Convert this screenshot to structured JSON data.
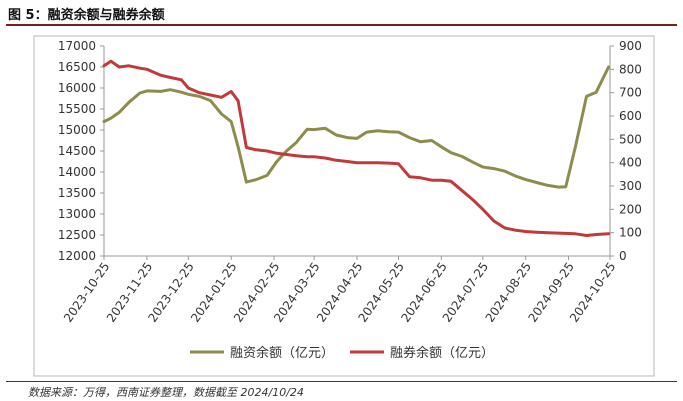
{
  "figure_title": "图 5：融资余额与融券余额",
  "source_note": "数据来源：万得，西南证券整理，数据截至 2024/10/24",
  "chart_data": {
    "type": "line",
    "title": "",
    "x_tick_labels": [
      "2023-10-25",
      "2023-11-25",
      "2023-12-25",
      "2024-01-25",
      "2024-02-25",
      "2024-03-25",
      "2024-04-25",
      "2024-05-25",
      "2024-06-25",
      "2024-07-25",
      "2024-08-25",
      "2024-09-25",
      "2024-10-25"
    ],
    "left_axis": {
      "min": 12000,
      "max": 17000,
      "ticks": [
        12000,
        12500,
        13000,
        13500,
        14000,
        14500,
        15000,
        15500,
        16000,
        16500,
        17000
      ]
    },
    "right_axis": {
      "min": 0,
      "max": 900,
      "ticks": [
        0,
        100,
        200,
        300,
        400,
        500,
        600,
        700,
        800,
        900
      ]
    },
    "grid": false,
    "legend_position": "bottom",
    "series": [
      {
        "name": "融资余额（亿元）",
        "axis": "left",
        "color": "#8c8c4e",
        "points": [
          [
            "2023-10-25",
            15200
          ],
          [
            "2023-10-30",
            15280
          ],
          [
            "2023-11-05",
            15420
          ],
          [
            "2023-11-12",
            15660
          ],
          [
            "2023-11-20",
            15880
          ],
          [
            "2023-11-25",
            15930
          ],
          [
            "2023-12-05",
            15920
          ],
          [
            "2023-12-12",
            15960
          ],
          [
            "2023-12-20",
            15900
          ],
          [
            "2023-12-25",
            15850
          ],
          [
            "2024-01-02",
            15800
          ],
          [
            "2024-01-10",
            15700
          ],
          [
            "2024-01-18",
            15380
          ],
          [
            "2024-01-25",
            15200
          ],
          [
            "2024-01-30",
            14600
          ],
          [
            "2024-02-05",
            13760
          ],
          [
            "2024-02-12",
            13820
          ],
          [
            "2024-02-20",
            13920
          ],
          [
            "2024-02-27",
            14250
          ],
          [
            "2024-03-05",
            14500
          ],
          [
            "2024-03-12",
            14700
          ],
          [
            "2024-03-20",
            15020
          ],
          [
            "2024-03-25",
            15010
          ],
          [
            "2024-04-02",
            15040
          ],
          [
            "2024-04-10",
            14880
          ],
          [
            "2024-04-18",
            14820
          ],
          [
            "2024-04-25",
            14800
          ],
          [
            "2024-05-02",
            14950
          ],
          [
            "2024-05-10",
            14980
          ],
          [
            "2024-05-18",
            14960
          ],
          [
            "2024-05-25",
            14950
          ],
          [
            "2024-06-02",
            14820
          ],
          [
            "2024-06-10",
            14720
          ],
          [
            "2024-06-18",
            14750
          ],
          [
            "2024-06-25",
            14600
          ],
          [
            "2024-07-02",
            14460
          ],
          [
            "2024-07-10",
            14370
          ],
          [
            "2024-07-18",
            14230
          ],
          [
            "2024-07-25",
            14120
          ],
          [
            "2024-08-02",
            14080
          ],
          [
            "2024-08-10",
            14020
          ],
          [
            "2024-08-18",
            13900
          ],
          [
            "2024-08-25",
            13820
          ],
          [
            "2024-09-02",
            13750
          ],
          [
            "2024-09-10",
            13680
          ],
          [
            "2024-09-18",
            13640
          ],
          [
            "2024-09-23",
            13650
          ],
          [
            "2024-09-30",
            14600
          ],
          [
            "2024-10-08",
            15800
          ],
          [
            "2024-10-15",
            15900
          ],
          [
            "2024-10-24",
            16500
          ]
        ]
      },
      {
        "name": "融券余额（亿元）",
        "axis": "right",
        "color": "#c0393b",
        "points": [
          [
            "2023-10-25",
            815
          ],
          [
            "2023-10-30",
            835
          ],
          [
            "2023-11-05",
            810
          ],
          [
            "2023-11-12",
            815
          ],
          [
            "2023-11-20",
            805
          ],
          [
            "2023-11-25",
            800
          ],
          [
            "2023-12-05",
            775
          ],
          [
            "2023-12-12",
            765
          ],
          [
            "2023-12-20",
            755
          ],
          [
            "2023-12-25",
            720
          ],
          [
            "2024-01-02",
            700
          ],
          [
            "2024-01-10",
            690
          ],
          [
            "2024-01-18",
            680
          ],
          [
            "2024-01-25",
            705
          ],
          [
            "2024-01-30",
            665
          ],
          [
            "2024-02-05",
            465
          ],
          [
            "2024-02-12",
            455
          ],
          [
            "2024-02-20",
            450
          ],
          [
            "2024-02-27",
            440
          ],
          [
            "2024-03-05",
            435
          ],
          [
            "2024-03-12",
            430
          ],
          [
            "2024-03-20",
            425
          ],
          [
            "2024-03-25",
            425
          ],
          [
            "2024-04-02",
            420
          ],
          [
            "2024-04-10",
            410
          ],
          [
            "2024-04-18",
            405
          ],
          [
            "2024-04-25",
            400
          ],
          [
            "2024-05-02",
            400
          ],
          [
            "2024-05-10",
            400
          ],
          [
            "2024-05-18",
            398
          ],
          [
            "2024-05-25",
            395
          ],
          [
            "2024-06-02",
            340
          ],
          [
            "2024-06-10",
            335
          ],
          [
            "2024-06-18",
            325
          ],
          [
            "2024-06-25",
            325
          ],
          [
            "2024-07-02",
            320
          ],
          [
            "2024-07-10",
            280
          ],
          [
            "2024-07-18",
            240
          ],
          [
            "2024-07-25",
            200
          ],
          [
            "2024-08-02",
            150
          ],
          [
            "2024-08-10",
            120
          ],
          [
            "2024-08-18",
            110
          ],
          [
            "2024-08-25",
            105
          ],
          [
            "2024-09-02",
            102
          ],
          [
            "2024-09-10",
            100
          ],
          [
            "2024-09-18",
            98
          ],
          [
            "2024-09-23",
            97
          ],
          [
            "2024-09-30",
            95
          ],
          [
            "2024-10-08",
            88
          ],
          [
            "2024-10-15",
            92
          ],
          [
            "2024-10-24",
            95
          ]
        ]
      }
    ]
  }
}
